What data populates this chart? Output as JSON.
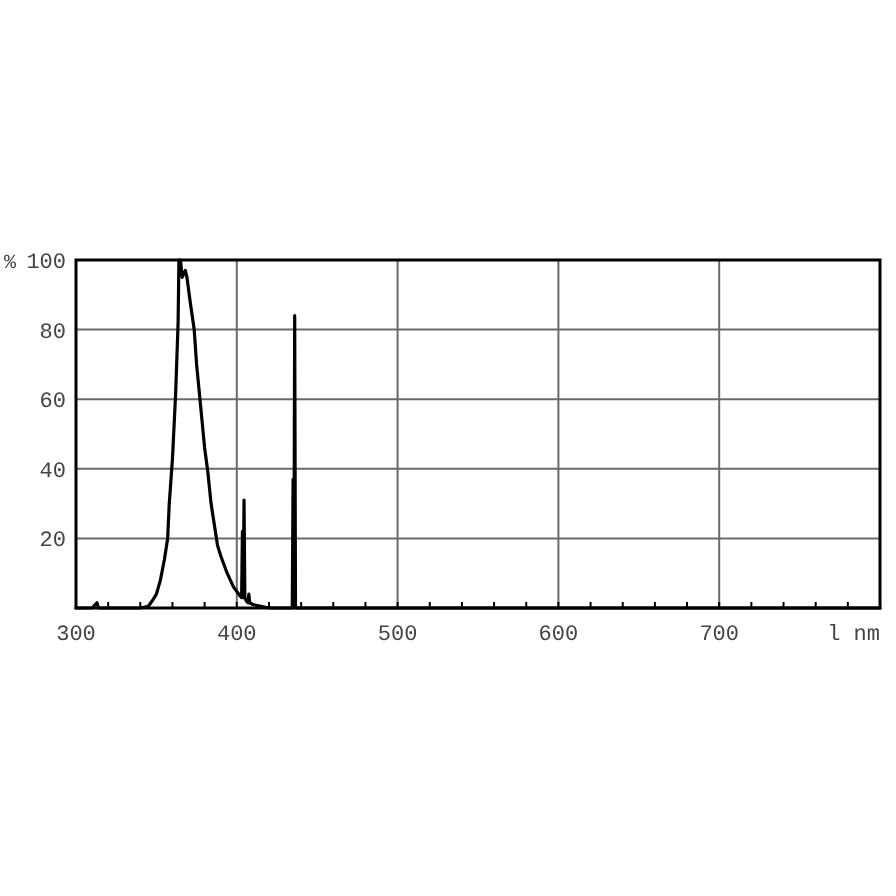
{
  "chart_data": {
    "type": "line",
    "xlabel": "l nm",
    "ylabel": "%",
    "x": [
      300,
      310,
      312,
      313,
      314,
      320,
      330,
      340,
      345,
      348,
      350,
      352.5,
      355,
      357,
      358,
      360,
      362,
      363.5,
      364,
      365,
      366,
      367,
      368,
      369,
      371,
      373.5,
      375,
      377.5,
      380,
      382,
      384,
      386,
      388,
      390,
      394,
      398,
      402,
      403,
      403.5,
      404,
      404.5,
      405,
      406,
      407,
      407.5,
      408,
      410,
      415,
      420,
      430,
      434.5,
      435,
      435.5,
      436,
      436.5,
      437,
      440,
      500,
      600,
      700,
      800
    ],
    "values": [
      0,
      0,
      1,
      1.5,
      0,
      0,
      0,
      0,
      0.5,
      2.5,
      4,
      8,
      14,
      20,
      30,
      43,
      62,
      82,
      100,
      100,
      95,
      96,
      97,
      95,
      88,
      80,
      70,
      58,
      46,
      39,
      30,
      24,
      18,
      15,
      10,
      6,
      3.5,
      3,
      22,
      3,
      31,
      3,
      2,
      1.5,
      4,
      1.5,
      1,
      0.5,
      0,
      0,
      0,
      37,
      0.5,
      84,
      0.5,
      0,
      0,
      0,
      0,
      0,
      0
    ],
    "color": "#000000",
    "xlim": [
      300,
      800
    ],
    "xticks": [
      300,
      {
        "value": 320,
        "label": null
      },
      {
        "value": 340,
        "label": null
      },
      {
        "value": 360,
        "label": null
      },
      {
        "value": 380,
        "label": null
      },
      400,
      {
        "value": 420,
        "label": null
      },
      {
        "value": 440,
        "label": null
      },
      {
        "value": 460,
        "label": null
      },
      {
        "value": 480,
        "label": null
      },
      500,
      {
        "value": 520,
        "label": null
      },
      {
        "value": 540,
        "label": null
      },
      {
        "value": 560,
        "label": null
      },
      {
        "value": 580,
        "label": null
      },
      600,
      {
        "value": 620,
        "label": null
      },
      {
        "value": 640,
        "label": null
      },
      {
        "value": 660,
        "label": null
      },
      {
        "value": 680,
        "label": null
      },
      700,
      {
        "value": 720,
        "label": null
      },
      {
        "value": 740,
        "label": null
      },
      {
        "value": 760,
        "label": null
      },
      {
        "value": 780,
        "label": null
      }
    ],
    "ylim": [
      0,
      100
    ],
    "yticks": [
      20,
      40,
      60,
      80,
      100
    ],
    "grid": true
  }
}
